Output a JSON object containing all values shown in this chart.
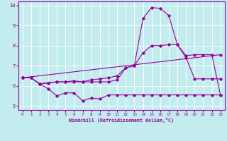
{
  "xlabel": "Windchill (Refroidissement éolien,°C)",
  "xlim": [
    -0.5,
    23.5
  ],
  "ylim": [
    4.8,
    10.2
  ],
  "yticks": [
    5,
    6,
    7,
    8,
    9,
    10
  ],
  "xticks": [
    0,
    1,
    2,
    3,
    4,
    5,
    6,
    7,
    8,
    9,
    10,
    11,
    12,
    13,
    14,
    15,
    16,
    17,
    18,
    19,
    20,
    21,
    22,
    23
  ],
  "background_color": "#c2ecee",
  "grid_color": "#ffffff",
  "line_color": "#990099",
  "lines": [
    {
      "x": [
        0,
        1,
        2,
        3,
        4,
        5,
        6,
        7,
        8,
        9,
        10,
        11,
        12,
        13,
        14,
        15,
        16,
        17,
        18,
        19,
        20,
        21,
        22,
        23
      ],
      "y": [
        6.4,
        6.4,
        6.1,
        5.85,
        5.5,
        5.65,
        5.65,
        5.25,
        5.4,
        5.35,
        5.55,
        5.55,
        5.55,
        5.55,
        5.55,
        5.55,
        5.55,
        5.55,
        5.55,
        5.55,
        5.55,
        5.55,
        5.55,
        5.55
      ]
    },
    {
      "x": [
        0,
        1,
        2,
        3,
        4,
        5,
        6,
        7,
        8,
        9,
        10,
        11,
        12,
        13,
        14,
        15,
        16,
        17,
        18,
        19,
        20,
        21,
        22,
        23
      ],
      "y": [
        6.4,
        6.4,
        6.1,
        6.15,
        6.2,
        6.2,
        6.2,
        6.2,
        6.2,
        6.2,
        6.2,
        6.3,
        6.9,
        7.0,
        9.35,
        9.9,
        9.85,
        9.5,
        8.05,
        7.4,
        6.35,
        6.35,
        6.35,
        6.35
      ]
    },
    {
      "x": [
        0,
        23
      ],
      "y": [
        6.4,
        7.55
      ]
    },
    {
      "x": [
        0,
        1,
        2,
        3,
        4,
        5,
        6,
        7,
        8,
        9,
        10,
        11,
        12,
        13,
        14,
        15,
        16,
        17,
        18,
        19,
        20,
        21,
        22,
        23
      ],
      "y": [
        6.4,
        6.4,
        6.1,
        6.15,
        6.2,
        6.2,
        6.25,
        6.2,
        6.3,
        6.35,
        6.4,
        6.5,
        6.9,
        7.0,
        7.65,
        8.0,
        8.0,
        8.05,
        8.05,
        7.5,
        7.55,
        7.55,
        7.55,
        5.55
      ]
    }
  ]
}
